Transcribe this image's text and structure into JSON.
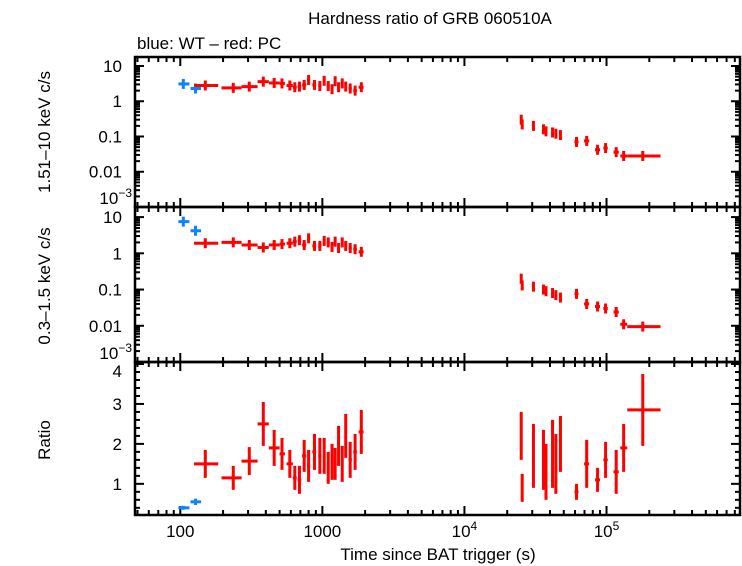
{
  "chart_data": {
    "type": "scatter",
    "title": "Hardness ratio of GRB 060510A",
    "subtitle": "blue: WT – red: PC",
    "xlabel": "Time since BAT trigger (s)",
    "xscale": "log",
    "xlim": [
      48,
      870000
    ],
    "xticks": [
      {
        "value": 100,
        "label": "100"
      },
      {
        "value": 1000,
        "label": "1000"
      },
      {
        "value": 10000,
        "label": "10",
        "sup": "4"
      },
      {
        "value": 100000,
        "label": "10",
        "sup": "5"
      }
    ],
    "colors": {
      "WT": "#0a84ff",
      "PC": "#ff0000"
    },
    "panels": [
      {
        "key": "hard",
        "ylabel": "1.51–10 keV c/s",
        "yscale": "log",
        "ylim": [
          0.001,
          18
        ],
        "yticks": [
          {
            "value": 10,
            "label": "10"
          },
          {
            "value": 1,
            "label": "1"
          },
          {
            "value": 0.1,
            "label": "0.1"
          },
          {
            "value": 0.01,
            "label": "0.01"
          },
          {
            "value": 0.001,
            "label": "10",
            "sup": "−3"
          }
        ]
      },
      {
        "key": "soft",
        "ylabel": "0.3–1.5 keV c/s",
        "yscale": "log",
        "ylim": [
          0.001,
          19
        ],
        "yticks": [
          {
            "value": 10,
            "label": "10"
          },
          {
            "value": 1,
            "label": "1"
          },
          {
            "value": 0.1,
            "label": "0.1"
          },
          {
            "value": 0.01,
            "label": "0.01"
          },
          {
            "value": 0.001,
            "label": "10",
            "sup": "−3"
          }
        ]
      },
      {
        "key": "ratio",
        "ylabel": "Ratio",
        "yscale": "linear",
        "ylim": [
          0.22,
          4.05
        ],
        "yticks": [
          {
            "value": 4,
            "label": "4"
          },
          {
            "value": 3,
            "label": "3"
          },
          {
            "value": 2,
            "label": "2"
          },
          {
            "value": 1,
            "label": "1"
          }
        ]
      }
    ],
    "series": [
      {
        "mode": "WT",
        "points": [
          {
            "t": 105,
            "tlo": 97,
            "thi": 116,
            "hard": 3.1,
            "soft": 7.5,
            "ratio": 0.4,
            "rerr": 0.05
          },
          {
            "t": 128,
            "tlo": 118,
            "thi": 140,
            "hard": 2.3,
            "soft": 4.2,
            "ratio": 0.55,
            "rerr": 0.08
          }
        ]
      },
      {
        "mode": "PC",
        "points": [
          {
            "t": 150,
            "tlo": 125,
            "thi": 185,
            "hard": 2.8,
            "soft": 1.9,
            "ratio": 1.5,
            "rerr": 0.35
          },
          {
            "t": 236,
            "tlo": 195,
            "thi": 270,
            "hard": 2.4,
            "soft": 2.0,
            "ratio": 1.15,
            "rerr": 0.3
          },
          {
            "t": 306,
            "tlo": 270,
            "thi": 350,
            "hard": 2.6,
            "soft": 1.7,
            "ratio": 1.57,
            "rerr": 0.35
          },
          {
            "t": 384,
            "tlo": 350,
            "thi": 420,
            "hard": 3.6,
            "soft": 1.45,
            "ratio": 2.5,
            "rerr": 0.55
          },
          {
            "t": 458,
            "tlo": 420,
            "thi": 500,
            "hard": 3.3,
            "soft": 1.7,
            "ratio": 1.9,
            "rerr": 0.45
          },
          {
            "t": 520,
            "tlo": 500,
            "thi": 545,
            "hard": 3.2,
            "soft": 1.8,
            "ratio": 1.75,
            "rerr": 0.4
          },
          {
            "t": 590,
            "tlo": 560,
            "thi": 620,
            "hard": 2.8,
            "soft": 1.9,
            "ratio": 1.5,
            "rerr": 0.35
          },
          {
            "t": 640,
            "tlo": 620,
            "thi": 660,
            "hard": 2.5,
            "soft": 2.1,
            "ratio": 1.15,
            "rerr": 0.3
          },
          {
            "t": 690,
            "tlo": 670,
            "thi": 710,
            "hard": 2.6,
            "soft": 2.3,
            "ratio": 1.1,
            "rerr": 0.35
          },
          {
            "t": 745,
            "tlo": 720,
            "thi": 770,
            "hard": 2.9,
            "soft": 1.7,
            "ratio": 1.7,
            "rerr": 0.4
          },
          {
            "t": 800,
            "tlo": 780,
            "thi": 820,
            "hard": 4.0,
            "soft": 2.6,
            "ratio": 1.45,
            "rerr": 0.4
          },
          {
            "t": 880,
            "tlo": 850,
            "thi": 905,
            "hard": 2.9,
            "soft": 1.6,
            "ratio": 1.8,
            "rerr": 0.45
          },
          {
            "t": 960,
            "tlo": 935,
            "thi": 985,
            "hard": 2.7,
            "soft": 1.6,
            "ratio": 1.7,
            "rerr": 0.45
          },
          {
            "t": 1030,
            "tlo": 1010,
            "thi": 1050,
            "hard": 3.8,
            "soft": 2.2,
            "ratio": 1.7,
            "rerr": 0.45
          },
          {
            "t": 1100,
            "tlo": 1075,
            "thi": 1125,
            "hard": 2.7,
            "soft": 2.0,
            "ratio": 1.4,
            "rerr": 0.4
          },
          {
            "t": 1170,
            "tlo": 1145,
            "thi": 1195,
            "hard": 2.2,
            "soft": 1.5,
            "ratio": 1.55,
            "rerr": 0.45
          },
          {
            "t": 1230,
            "tlo": 1210,
            "thi": 1250,
            "hard": 3.7,
            "soft": 2.1,
            "ratio": 1.5,
            "rerr": 0.4
          },
          {
            "t": 1300,
            "tlo": 1275,
            "thi": 1325,
            "hard": 2.5,
            "soft": 1.4,
            "ratio": 1.95,
            "rerr": 0.5
          },
          {
            "t": 1380,
            "tlo": 1355,
            "thi": 1405,
            "hard": 3.2,
            "soft": 2.0,
            "ratio": 1.5,
            "rerr": 0.45
          },
          {
            "t": 1460,
            "tlo": 1435,
            "thi": 1485,
            "hard": 2.6,
            "soft": 1.6,
            "ratio": 2.2,
            "rerr": 0.55
          },
          {
            "t": 1570,
            "tlo": 1530,
            "thi": 1610,
            "hard": 2.3,
            "soft": 1.4,
            "ratio": 1.6,
            "rerr": 0.45
          },
          {
            "t": 1700,
            "tlo": 1650,
            "thi": 1750,
            "hard": 2.0,
            "soft": 1.3,
            "ratio": 1.8,
            "rerr": 0.45
          },
          {
            "t": 1880,
            "tlo": 1800,
            "thi": 1950,
            "hard": 2.5,
            "soft": 1.1,
            "ratio": 2.3,
            "rerr": 0.55
          },
          {
            "t": 25100,
            "tlo": 24800,
            "thi": 25400,
            "hard": 0.3,
            "soft": 0.2,
            "ratio": 2.2,
            "rerr": 0.6
          },
          {
            "t": 25500,
            "tlo": 25300,
            "thi": 25700,
            "hard": 0.22,
            "soft": 0.13,
            "ratio": 0.9,
            "rerr": 0.35
          },
          {
            "t": 30600,
            "tlo": 30200,
            "thi": 31000,
            "hard": 0.2,
            "soft": 0.12,
            "ratio": 1.7,
            "rerr": 0.8
          },
          {
            "t": 36000,
            "tlo": 35500,
            "thi": 36500,
            "hard": 0.16,
            "soft": 0.1,
            "ratio": 1.6,
            "rerr": 0.75
          },
          {
            "t": 37500,
            "tlo": 37000,
            "thi": 38000,
            "hard": 0.14,
            "soft": 0.09,
            "ratio": 1.3,
            "rerr": 0.7
          },
          {
            "t": 41700,
            "tlo": 41000,
            "thi": 42400,
            "hard": 0.13,
            "soft": 0.08,
            "ratio": 1.75,
            "rerr": 0.85
          },
          {
            "t": 44000,
            "tlo": 43300,
            "thi": 44700,
            "hard": 0.12,
            "soft": 0.07,
            "ratio": 1.5,
            "rerr": 0.75
          },
          {
            "t": 47400,
            "tlo": 46500,
            "thi": 48300,
            "hard": 0.11,
            "soft": 0.06,
            "ratio": 2.0,
            "rerr": 0.7
          },
          {
            "t": 61500,
            "tlo": 59500,
            "thi": 63500,
            "hard": 0.07,
            "soft": 0.076,
            "ratio": 0.8,
            "rerr": 0.2
          },
          {
            "t": 72500,
            "tlo": 69500,
            "thi": 75500,
            "hard": 0.075,
            "soft": 0.04,
            "ratio": 1.5,
            "rerr": 0.6
          },
          {
            "t": 86500,
            "tlo": 83000,
            "thi": 90000,
            "hard": 0.042,
            "soft": 0.034,
            "ratio": 1.1,
            "rerr": 0.3
          },
          {
            "t": 98500,
            "tlo": 95000,
            "thi": 102000,
            "hard": 0.047,
            "soft": 0.03,
            "ratio": 1.6,
            "rerr": 0.45
          },
          {
            "t": 117000,
            "tlo": 112000,
            "thi": 122000,
            "hard": 0.036,
            "soft": 0.024,
            "ratio": 1.3,
            "rerr": 0.55
          },
          {
            "t": 132000,
            "tlo": 125000,
            "thi": 140000,
            "hard": 0.028,
            "soft": 0.011,
            "ratio": 1.9,
            "rerr": 0.6
          },
          {
            "t": 180000,
            "tlo": 140000,
            "thi": 240000,
            "hard": 0.028,
            "soft": 0.0095,
            "ratio": 2.85,
            "rerr": 0.9
          }
        ]
      }
    ]
  }
}
